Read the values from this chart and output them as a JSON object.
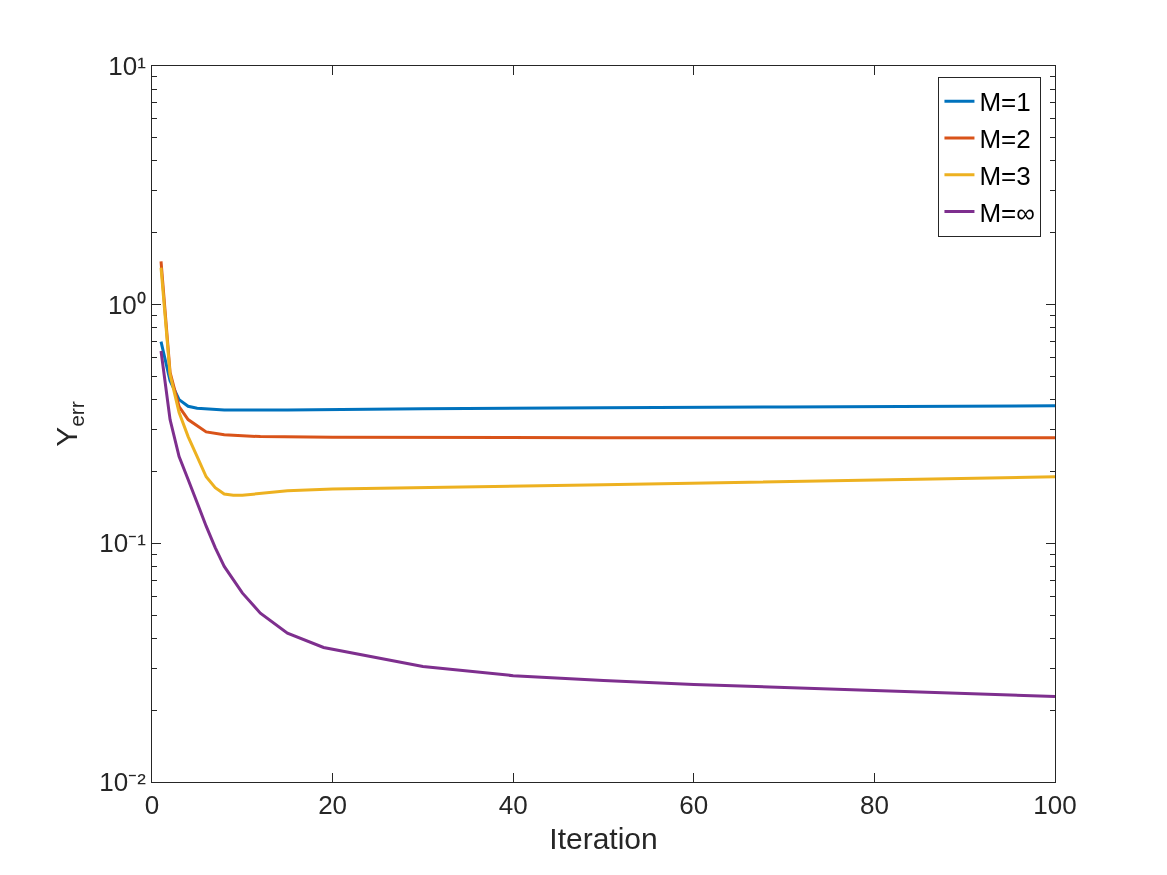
{
  "chart_data": {
    "type": "line",
    "xlabel": "Iteration",
    "ylabel": "Y$_{err}$",
    "log": "y",
    "xlim": [
      0,
      100
    ],
    "xticks": [
      0,
      20,
      40,
      60,
      80,
      100
    ],
    "ylim": [
      0.01,
      10
    ],
    "yticks": [
      {
        "value": 0.01,
        "label": "10⁻²"
      },
      {
        "value": 0.1,
        "label": "10⁻¹"
      },
      {
        "value": 1,
        "label": "10⁰"
      },
      {
        "value": 10,
        "label": "10¹"
      }
    ],
    "legend": "top right",
    "line_style": "solid",
    "marker": "none",
    "series": [
      {
        "name": "M=1",
        "color": "#0072bd",
        "x": [
          1,
          2,
          3,
          4,
          5,
          8,
          15,
          30,
          50,
          70,
          100
        ],
        "values": [
          0.7,
          0.48,
          0.4,
          0.375,
          0.368,
          0.362,
          0.362,
          0.366,
          0.37,
          0.373,
          0.377
        ]
      },
      {
        "name": "M=2",
        "color": "#d95319",
        "x": [
          1,
          2,
          3,
          4,
          6,
          8,
          12,
          20,
          50,
          100
        ],
        "values": [
          1.52,
          0.52,
          0.374,
          0.33,
          0.293,
          0.285,
          0.28,
          0.278,
          0.277,
          0.277
        ]
      },
      {
        "name": "M=3",
        "color": "#edb120",
        "x": [
          1,
          2,
          3,
          4,
          5,
          6,
          7,
          8,
          9,
          10,
          15,
          20,
          50,
          100
        ],
        "values": [
          1.43,
          0.51,
          0.353,
          0.28,
          0.231,
          0.19,
          0.171,
          0.161,
          0.159,
          0.159,
          0.166,
          0.169,
          0.176,
          0.19
        ]
      },
      {
        "name": "M=∞",
        "color": "#7e2f8e",
        "x": [
          1,
          2,
          3,
          4,
          5,
          6,
          7,
          8,
          10,
          12,
          15,
          19,
          30,
          40,
          50,
          60,
          80,
          100
        ],
        "values": [
          0.64,
          0.33,
          0.231,
          0.185,
          0.148,
          0.118,
          0.096,
          0.08,
          0.062,
          0.051,
          0.042,
          0.0366,
          0.0305,
          0.0279,
          0.0266,
          0.0256,
          0.0242,
          0.0228
        ]
      }
    ]
  }
}
